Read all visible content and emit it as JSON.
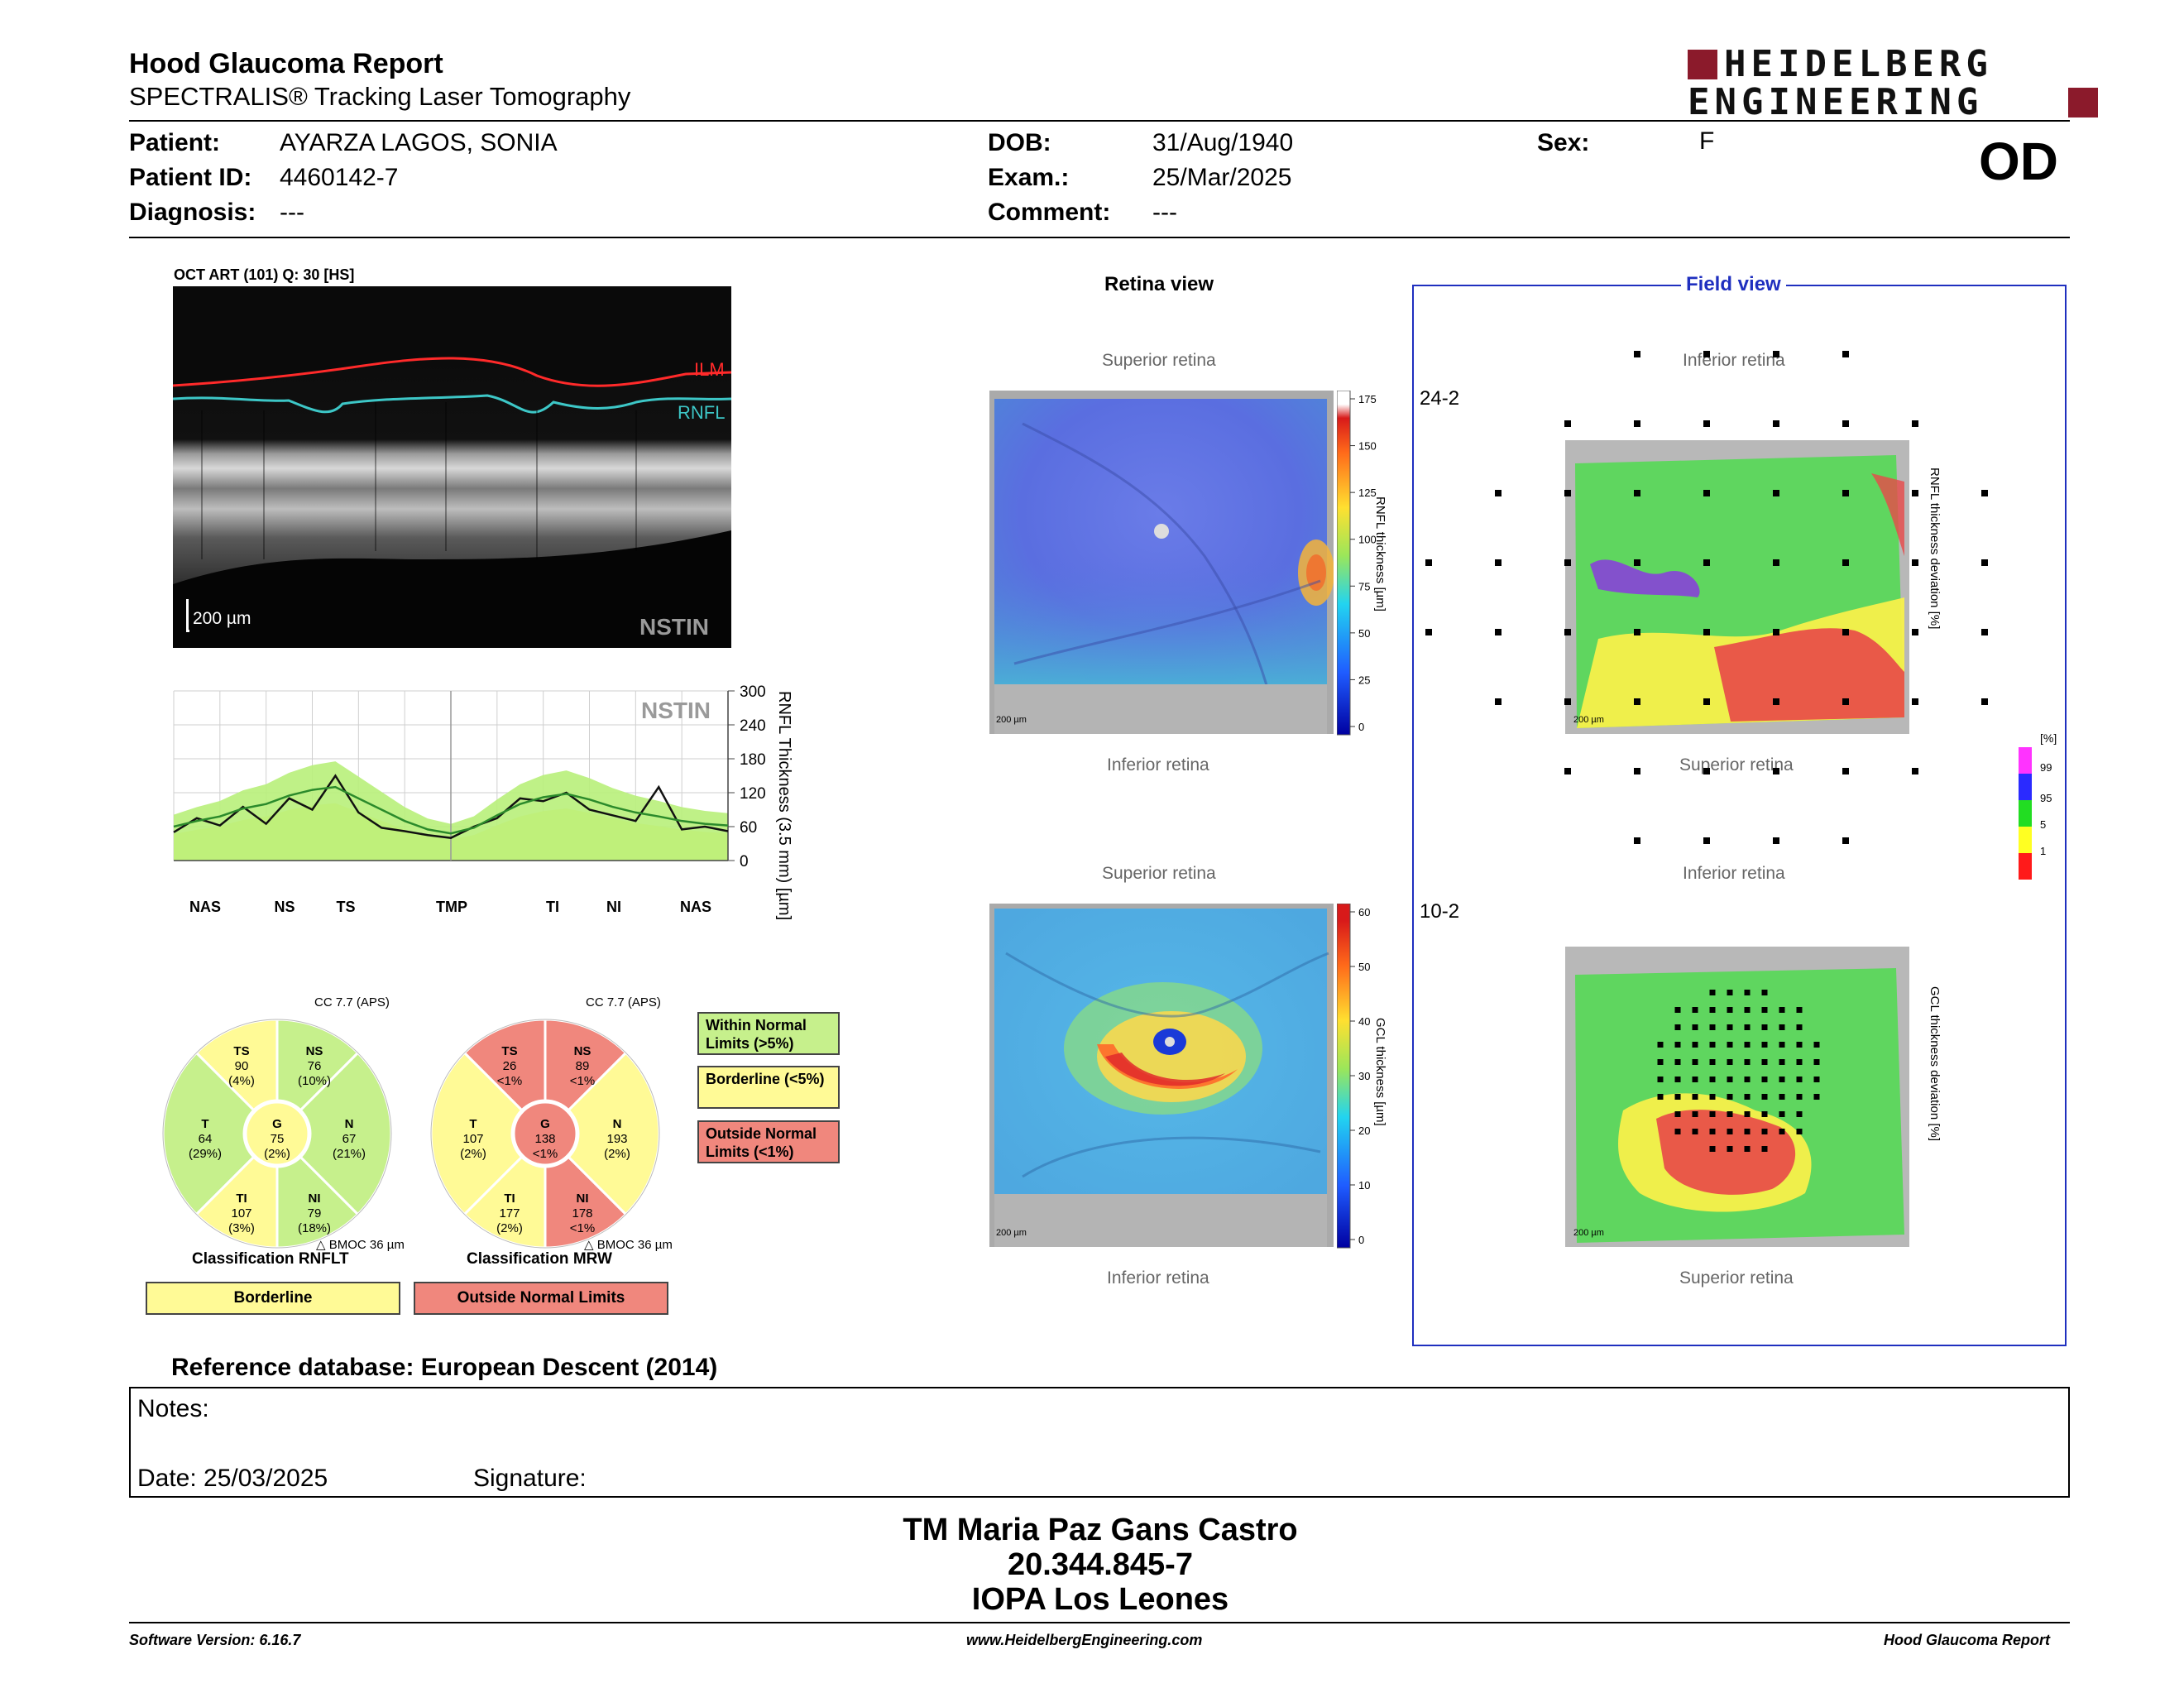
{
  "header": {
    "report_title": "Hood Glaucoma Report",
    "subtitle": "SPECTRALIS® Tracking Laser Tomography",
    "logo_line1": "HEIDELBERG",
    "logo_line2": "ENGINEERING",
    "eye": "OD"
  },
  "patient": {
    "patient_label": "Patient:",
    "patient_value": "AYARZA LAGOS, SONIA",
    "id_label": "Patient ID:",
    "id_value": "4460142-7",
    "diagnosis_label": "Diagnosis:",
    "diagnosis_value": "---",
    "dob_label": "DOB:",
    "dob_value": "31/Aug/1940",
    "exam_label": "Exam.:",
    "exam_value": "25/Mar/2025",
    "comment_label": "Comment:",
    "comment_value": "---",
    "sex_label": "Sex:",
    "sex_value": "F"
  },
  "oct": {
    "scan_label": "OCT ART (101) Q: 30 [HS]",
    "ilm_label": "ILM",
    "rnfl_label": "RNFL",
    "scale_label": "200 µm",
    "nstin_label": "NSTIN"
  },
  "profile_chart": {
    "nstin_label": "NSTIN",
    "y_axis_label": "RNFL Thickness (3.5 mm) [µm]",
    "y_ticks": [
      "300",
      "240",
      "180",
      "120",
      "60",
      "0"
    ],
    "x_labels": [
      "NAS",
      "NS",
      "TS",
      "TMP",
      "TI",
      "NI",
      "NAS"
    ]
  },
  "chart_data": {
    "type": "line",
    "title": "",
    "xlabel": "",
    "ylabel": "RNFL Thickness (3.5 mm) [µm]",
    "ylim": [
      0,
      300
    ],
    "x_tick_labels": [
      "NAS",
      "NS",
      "TS",
      "TMP",
      "TI",
      "NI",
      "NAS"
    ],
    "x": [
      0,
      15,
      30,
      45,
      60,
      75,
      90,
      105,
      120,
      135,
      150,
      165,
      180,
      195,
      210,
      225,
      240,
      255,
      270,
      285,
      300,
      315,
      330,
      345,
      360
    ],
    "series": [
      {
        "values": [
          50,
          75,
          62,
          95,
          65,
          110,
          90,
          150,
          85,
          58,
          52,
          45,
          40,
          60,
          75,
          110,
          105,
          120,
          90,
          80,
          70,
          130,
          55,
          60,
          52
        ]
      },
      {
        "values": [
          60,
          70,
          78,
          92,
          100,
          115,
          125,
          130,
          110,
          90,
          70,
          55,
          48,
          58,
          80,
          100,
          112,
          118,
          108,
          95,
          85,
          78,
          70,
          65,
          62
        ]
      }
    ],
    "grid": true
  },
  "sector_charts": [
    {
      "title": "Classification RNFLT",
      "cc": "CC 7.7 (APS)",
      "bmo": "BMOC 36 µm",
      "status": "Borderline",
      "sectors": {
        "TS": {
          "name": "TS",
          "value": "90",
          "pct": "(4%)"
        },
        "NS": {
          "name": "NS",
          "value": "76",
          "pct": "(10%)"
        },
        "T": {
          "name": "T",
          "value": "64",
          "pct": "(29%)"
        },
        "G": {
          "name": "G",
          "value": "75",
          "pct": "(2%)"
        },
        "N": {
          "name": "N",
          "value": "67",
          "pct": "(21%)"
        },
        "TI": {
          "name": "TI",
          "value": "107",
          "pct": "(3%)"
        },
        "NI": {
          "name": "NI",
          "value": "79",
          "pct": "(18%)"
        }
      }
    },
    {
      "title": "Classification MRW",
      "cc": "CC 7.7 (APS)",
      "bmo": "BMOC 36 µm",
      "status": "Outside Normal Limits",
      "sectors": {
        "TS": {
          "name": "TS",
          "value": "26",
          "pct": "<1%"
        },
        "NS": {
          "name": "NS",
          "value": "89",
          "pct": "<1%"
        },
        "T": {
          "name": "T",
          "value": "107",
          "pct": "(2%)"
        },
        "G": {
          "name": "G",
          "value": "138",
          "pct": "<1%"
        },
        "N": {
          "name": "N",
          "value": "193",
          "pct": "(2%)"
        },
        "TI": {
          "name": "TI",
          "value": "177",
          "pct": "(2%)"
        },
        "NI": {
          "name": "NI",
          "value": "178",
          "pct": "<1%"
        }
      }
    }
  ],
  "legend": {
    "within": "Within Normal Limits (>5%)",
    "borderline": "Borderline (<5%)",
    "outside": "Outside Normal Limits (<1%)"
  },
  "colors": {
    "within": "#c6f08c",
    "borderline": "#fffa96",
    "outside": "#f0877d",
    "field_frame": "#1f2fbf"
  },
  "retina_view": {
    "title": "Retina view",
    "superior": "Superior retina",
    "inferior": "Inferior retina",
    "scale": "200 µm",
    "rnfl_scale_label": "RNFL thickness [µm]",
    "rnfl_ticks": [
      "175",
      "150",
      "125",
      "100",
      "75",
      "50",
      "25",
      "0"
    ],
    "gcl_scale_label": "GCL thickness [µm]",
    "gcl_ticks": [
      "60",
      "50",
      "40",
      "30",
      "20",
      "10",
      "0"
    ]
  },
  "field_view": {
    "title": "Field view",
    "grid_242": "24-2",
    "grid_102": "10-2",
    "inferior": "Inferior retina",
    "superior": "Superior retina",
    "rnfl_dev_label": "RNFL thickness deviation [%]",
    "gcl_dev_label": "GCL thickness deviation [%]",
    "dev_unit": "[%]",
    "dev_ticks": [
      "99",
      "95",
      "5",
      "1"
    ]
  },
  "reference_db": "Reference database: European Descent (2014)",
  "notes": {
    "notes_label": "Notes:",
    "date_label": "Date: 25/03/2025",
    "signature_label": "Signature:"
  },
  "signer": {
    "line1": "TM Maria Paz Gans Castro",
    "line2": "20.344.845-7",
    "line3": "IOPA Los Leones"
  },
  "footer": {
    "software": "Software Version: 6.16.7",
    "website": "www.HeidelbergEngineering.com",
    "report": "Hood Glaucoma Report"
  }
}
